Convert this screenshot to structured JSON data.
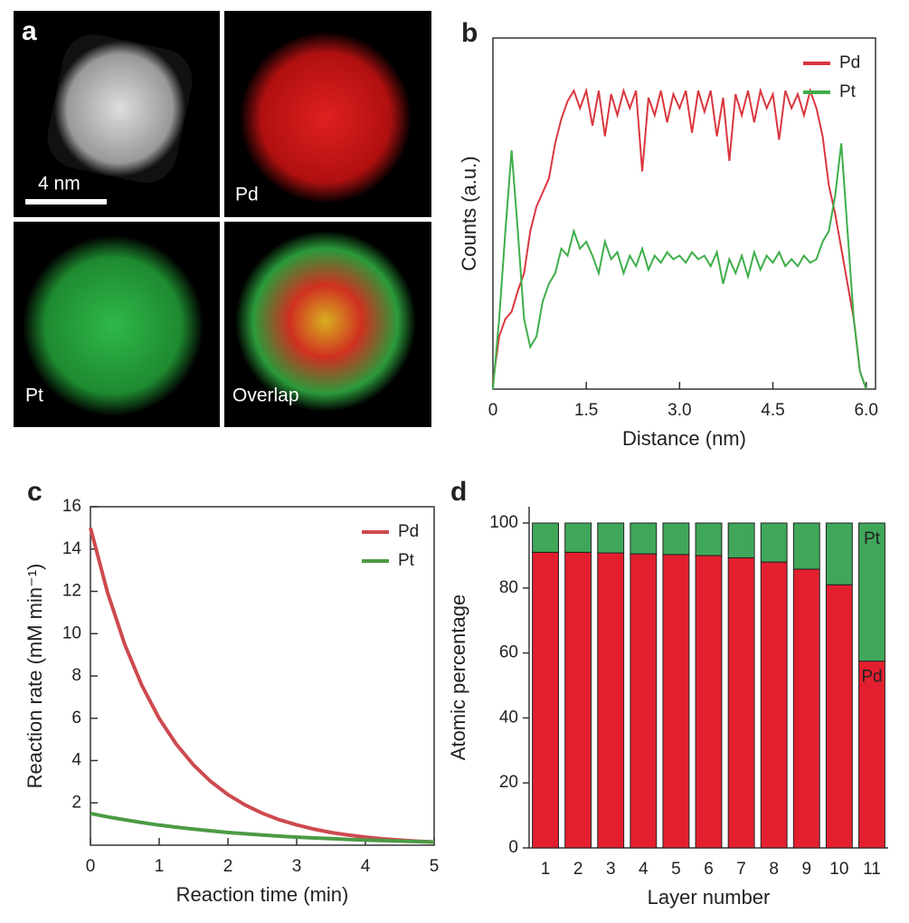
{
  "image_panel": {
    "label": "a",
    "scale_bar": "4 nm",
    "tiles": [
      "Pd",
      "Pt",
      "Overlap"
    ]
  },
  "chart_data": [
    {
      "type": "line",
      "panel": "b",
      "xlabel": "Distance (nm)",
      "ylabel": "Counts (a.u.)",
      "xlim": [
        0,
        6.15
      ],
      "ylim": [
        0,
        1
      ],
      "xticks": [
        0,
        1.5,
        {
          "value": 3,
          "label": "3.0"
        },
        4.5,
        {
          "value": 6,
          "label": "6.0"
        }
      ],
      "legend": "upper right",
      "x": [
        0,
        0.1,
        0.2,
        0.3,
        0.4,
        0.5,
        0.6,
        0.7,
        0.8,
        0.9,
        1,
        1.1,
        1.2,
        1.3,
        1.4,
        1.5,
        1.6,
        1.7,
        1.8,
        1.9,
        2,
        2.1,
        2.2,
        2.3,
        2.4,
        2.5,
        2.6,
        2.7,
        2.8,
        2.9,
        3,
        3.1,
        3.2,
        3.3,
        3.4,
        3.5,
        3.6,
        3.7,
        3.8,
        3.9,
        4,
        4.1,
        4.2,
        4.3,
        4.4,
        4.5,
        4.6,
        4.7,
        4.8,
        4.9,
        5,
        5.1,
        5.2,
        5.3,
        5.4,
        5.5,
        5.6,
        5.7,
        5.8,
        5.9,
        6
      ],
      "series": [
        {
          "name": "Pd",
          "color": "#d9373f",
          "values": [
            0.02,
            0.15,
            0.2,
            0.22,
            0.28,
            0.33,
            0.45,
            0.52,
            0.56,
            0.6,
            0.7,
            0.77,
            0.82,
            0.85,
            0.8,
            0.85,
            0.75,
            0.85,
            0.72,
            0.84,
            0.78,
            0.85,
            0.8,
            0.85,
            0.62,
            0.83,
            0.78,
            0.85,
            0.76,
            0.84,
            0.8,
            0.85,
            0.73,
            0.85,
            0.79,
            0.85,
            0.72,
            0.83,
            0.65,
            0.84,
            0.78,
            0.85,
            0.76,
            0.85,
            0.8,
            0.84,
            0.71,
            0.85,
            0.8,
            0.84,
            0.78,
            0.85,
            0.8,
            0.72,
            0.58,
            0.5,
            0.4,
            0.3,
            0.2,
            0.05,
            0
          ]
        },
        {
          "name": "Pt",
          "color": "#3fae4a",
          "values": [
            0,
            0.2,
            0.45,
            0.68,
            0.45,
            0.2,
            0.12,
            0.15,
            0.25,
            0.3,
            0.33,
            0.4,
            0.38,
            0.45,
            0.4,
            0.42,
            0.38,
            0.33,
            0.42,
            0.37,
            0.39,
            0.33,
            0.38,
            0.35,
            0.4,
            0.34,
            0.38,
            0.36,
            0.39,
            0.37,
            0.38,
            0.36,
            0.39,
            0.37,
            0.38,
            0.35,
            0.39,
            0.3,
            0.37,
            0.33,
            0.38,
            0.32,
            0.39,
            0.34,
            0.38,
            0.36,
            0.39,
            0.35,
            0.37,
            0.35,
            0.38,
            0.36,
            0.37,
            0.42,
            0.45,
            0.55,
            0.7,
            0.45,
            0.2,
            0.05,
            0
          ]
        }
      ]
    },
    {
      "type": "line",
      "panel": "c",
      "xlabel": "Reaction time (min)",
      "ylabel": "Reaction rate (mM min⁻¹)",
      "xlim": [
        0,
        5
      ],
      "ylim": [
        0,
        16
      ],
      "xticks": [
        0,
        1,
        2,
        3,
        4,
        5
      ],
      "yticks": [
        2,
        4,
        6,
        8,
        10,
        12,
        14,
        16
      ],
      "legend": "upper right",
      "width": 4,
      "x": [
        0,
        0.25,
        0.5,
        0.75,
        1,
        1.25,
        1.5,
        1.75,
        2,
        2.25,
        2.5,
        2.75,
        3,
        3.25,
        3.5,
        3.75,
        4,
        4.25,
        4.5,
        4.75,
        5
      ],
      "series": [
        {
          "name": "Pd",
          "color": "#cd4a4f",
          "values": [
            15,
            11.93,
            9.48,
            7.54,
            5.99,
            4.77,
            3.79,
            3.01,
            2.39,
            1.9,
            1.51,
            1.2,
            0.96,
            0.76,
            0.6,
            0.48,
            0.38,
            0.3,
            0.24,
            0.19,
            0.15
          ]
        },
        {
          "name": "Pt",
          "color": "#4c9a45",
          "values": [
            1.5,
            1.34,
            1.2,
            1.07,
            0.95,
            0.85,
            0.76,
            0.68,
            0.6,
            0.54,
            0.48,
            0.43,
            0.38,
            0.34,
            0.31,
            0.27,
            0.24,
            0.22,
            0.19,
            0.17,
            0.15
          ]
        }
      ]
    },
    {
      "type": "stacked_bar",
      "panel": "d",
      "xlabel": "Layer number",
      "ylabel": "Atomic percentage",
      "ylim": [
        0,
        100
      ],
      "yticks": [
        0,
        20,
        40,
        60,
        80,
        100
      ],
      "categories": [
        "1",
        "2",
        "3",
        "4",
        "5",
        "6",
        "7",
        "8",
        "9",
        "10",
        "11"
      ],
      "series": [
        {
          "name": "Pd",
          "color": "#e31f2f",
          "values": [
            91,
            91,
            90.8,
            90.5,
            90.3,
            90,
            89.3,
            88,
            85.8,
            81,
            57.5
          ]
        },
        {
          "name": "Pt",
          "color": "#40a75a",
          "values": [
            9,
            9,
            9.2,
            9.5,
            9.7,
            10,
            10.7,
            12,
            14.2,
            19,
            42.5
          ]
        }
      ]
    }
  ]
}
